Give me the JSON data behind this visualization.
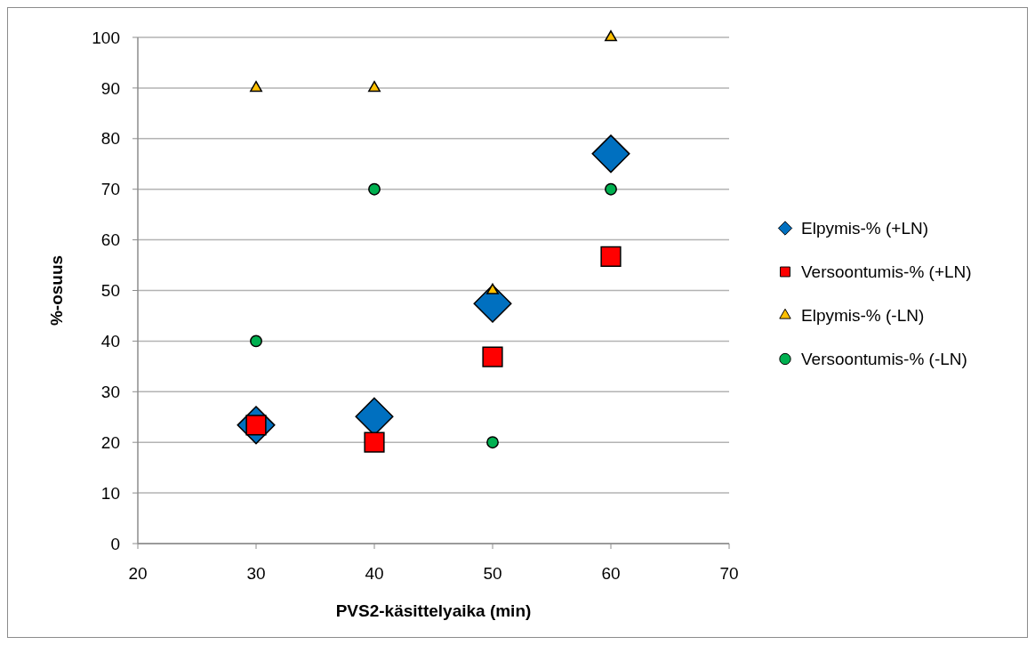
{
  "chart_data": {
    "type": "scatter",
    "xlabel": "PVS2-käsittelyaika (min)",
    "ylabel": "%-osuus",
    "x": [
      30,
      40,
      50,
      60
    ],
    "series": [
      {
        "name": "Elpymis-% (+LN)",
        "color": "#0070c0",
        "marker": "diamond",
        "values": [
          23.4,
          25.1,
          47.4,
          77
        ]
      },
      {
        "name": "Versoontumis-% (+LN)",
        "color": "#ff0000",
        "marker": "square",
        "values": [
          23.4,
          20,
          36.9,
          56.7
        ]
      },
      {
        "name": "Elpymis-% (-LN)",
        "color": "#ffc000",
        "marker": "triangle",
        "values": [
          90,
          90,
          50,
          100
        ]
      },
      {
        "name": "Versoontumis-% (-LN)",
        "color": "#00b050",
        "marker": "circle",
        "values": [
          40,
          70,
          20,
          70
        ]
      }
    ],
    "xlim": [
      20,
      70
    ],
    "xticks": [
      20,
      30,
      40,
      50,
      60,
      70
    ],
    "ylim": [
      0,
      100
    ],
    "yticks": [
      0,
      10,
      20,
      30,
      40,
      50,
      60,
      70,
      80,
      90,
      100
    ],
    "grid": "y",
    "legend": "right"
  }
}
